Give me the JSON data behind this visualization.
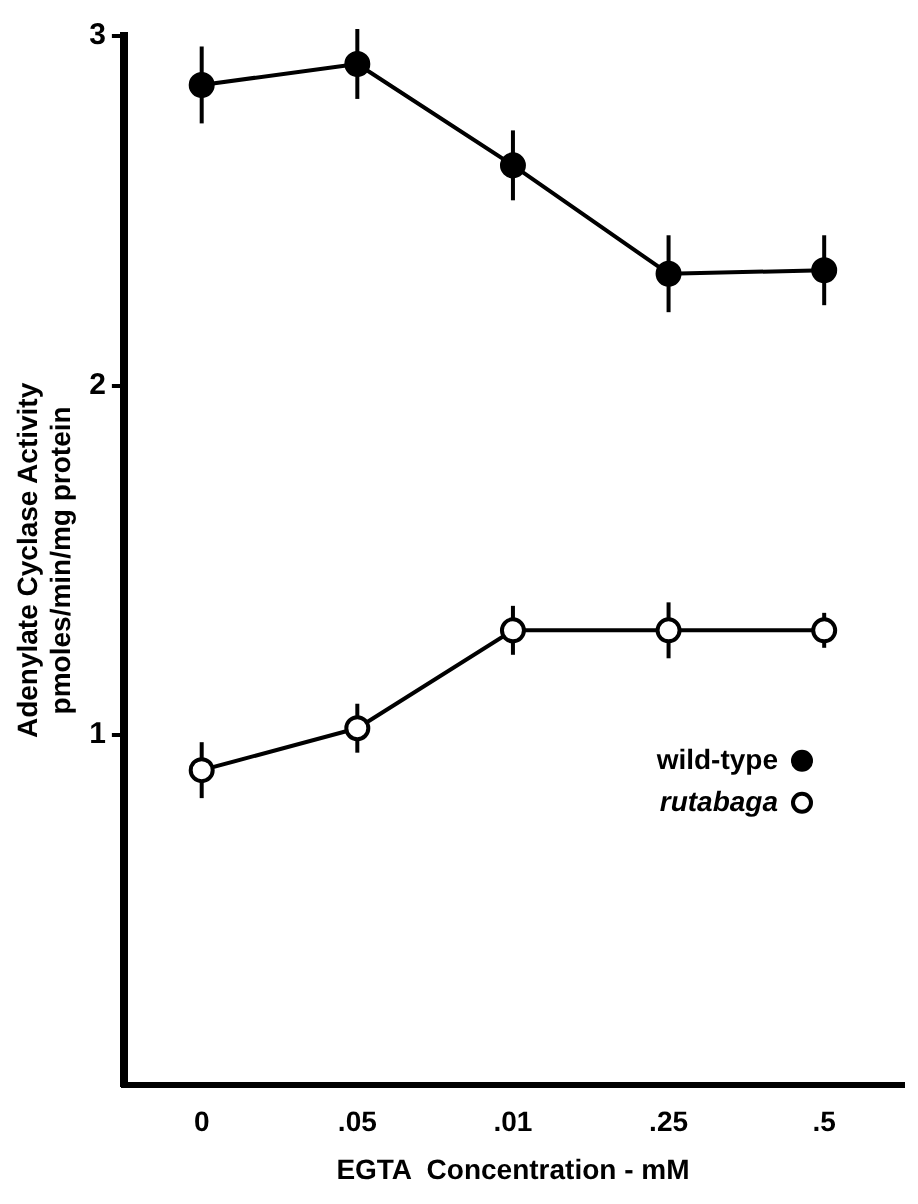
{
  "chart_data": {
    "type": "line",
    "xlabel": "EGTA  Concentration - mM",
    "ylabel": "Adenylate Cyclase Activity\npmoles/min/mg protein",
    "categories": [
      "0",
      ".05",
      ".01",
      ".25",
      ".5"
    ],
    "series": [
      {
        "name": "wild-type",
        "color": "#000000",
        "values": [
          2.86,
          2.92,
          2.63,
          2.32,
          2.33
        ],
        "errors": [
          0.11,
          0.1,
          0.1,
          0.11,
          0.1
        ]
      },
      {
        "name": "rutabaga",
        "color": "#000000",
        "values": [
          0.9,
          1.02,
          1.3,
          1.3,
          1.3
        ],
        "errors": [
          0.08,
          0.07,
          0.07,
          0.08,
          0.05
        ]
      }
    ],
    "ylim": [
      0,
      3
    ],
    "yticks": [
      1,
      2,
      3
    ],
    "grid": false,
    "legend": "bottom right",
    "marker": "circle",
    "line_style": "solid"
  }
}
